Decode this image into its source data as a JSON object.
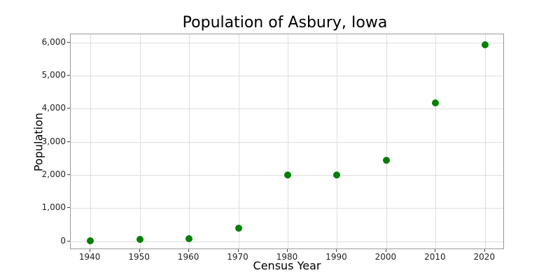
{
  "chart_data": {
    "type": "scatter",
    "title": "Population of Asbury, Iowa",
    "xlabel": "Census Year",
    "ylabel": "Population",
    "x": [
      1940,
      1950,
      1960,
      1970,
      1980,
      1990,
      2000,
      2010,
      2020
    ],
    "values": [
      20,
      50,
      70,
      400,
      2010,
      2010,
      2450,
      4170,
      5940
    ],
    "xticks": [
      "1940",
      "1950",
      "1960",
      "1970",
      "1980",
      "1990",
      "2000",
      "2010",
      "2020"
    ],
    "yticks": [
      "0",
      "1,000",
      "2,000",
      "3,000",
      "4,000",
      "5,000",
      "6,000"
    ],
    "ytick_values": [
      0,
      1000,
      2000,
      3000,
      4000,
      5000,
      6000
    ],
    "xlim": [
      1936,
      2024
    ],
    "ylim": [
      -260,
      6250
    ],
    "grid": true,
    "marker_color": "#008000",
    "legend": null
  }
}
